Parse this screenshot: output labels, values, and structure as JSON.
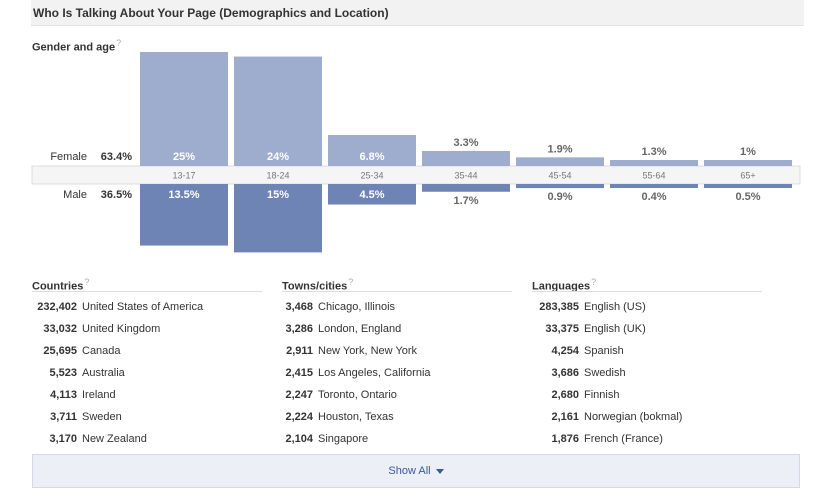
{
  "header": {
    "title": "Who Is Talking About Your Page (Demographics and Location)"
  },
  "gender_age": {
    "title": "Gender and age",
    "help": "?",
    "female_label": "Female",
    "female_pct": "63.4%",
    "male_label": "Male",
    "male_pct": "36.5%"
  },
  "chart_data": {
    "type": "bar",
    "categories": [
      "13-17",
      "18-24",
      "25-34",
      "35-44",
      "45-54",
      "55-64",
      "65+"
    ],
    "series": [
      {
        "name": "Female",
        "values": [
          25,
          24,
          6.8,
          3.3,
          1.9,
          1.3,
          1
        ],
        "labels": [
          "25%",
          "24%",
          "6.8%",
          "3.3%",
          "1.9%",
          "1.3%",
          "1%"
        ]
      },
      {
        "name": "Male",
        "values": [
          13.5,
          15,
          4.5,
          1.7,
          0.9,
          0.4,
          0.5
        ],
        "labels": [
          "13.5%",
          "15%",
          "4.5%",
          "1.7%",
          "0.9%",
          "0.4%",
          "0.5%"
        ]
      }
    ],
    "colors": {
      "female": "#9eadcd",
      "male": "#6d84b4",
      "axis_band": "#f5f5f5"
    }
  },
  "countries": {
    "title": "Countries",
    "help": "?",
    "rows": [
      {
        "count": "232,402",
        "name": "United States of America"
      },
      {
        "count": "33,032",
        "name": "United Kingdom"
      },
      {
        "count": "25,695",
        "name": "Canada"
      },
      {
        "count": "5,523",
        "name": "Australia"
      },
      {
        "count": "4,113",
        "name": "Ireland"
      },
      {
        "count": "3,711",
        "name": "Sweden"
      },
      {
        "count": "3,170",
        "name": "New Zealand"
      }
    ]
  },
  "cities": {
    "title": "Towns/cities",
    "help": "?",
    "rows": [
      {
        "count": "3,468",
        "name": "Chicago, Illinois"
      },
      {
        "count": "3,286",
        "name": "London, England"
      },
      {
        "count": "2,911",
        "name": "New York, New York"
      },
      {
        "count": "2,415",
        "name": "Los Angeles, California"
      },
      {
        "count": "2,247",
        "name": "Toronto, Ontario"
      },
      {
        "count": "2,224",
        "name": "Houston, Texas"
      },
      {
        "count": "2,104",
        "name": "Singapore"
      }
    ]
  },
  "languages": {
    "title": "Languages",
    "help": "?",
    "rows": [
      {
        "count": "283,385",
        "name": "English (US)"
      },
      {
        "count": "33,375",
        "name": "English (UK)"
      },
      {
        "count": "4,254",
        "name": "Spanish"
      },
      {
        "count": "3,686",
        "name": "Swedish"
      },
      {
        "count": "2,680",
        "name": "Finnish"
      },
      {
        "count": "2,161",
        "name": "Norwegian (bokmal)"
      },
      {
        "count": "1,876",
        "name": "French (France)"
      }
    ]
  },
  "show_all": {
    "label": "Show All",
    "icon": "caret-down-icon"
  }
}
